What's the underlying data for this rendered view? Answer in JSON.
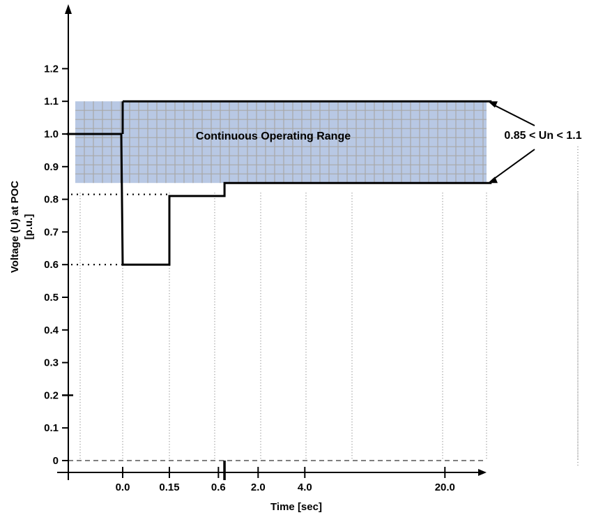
{
  "chart_data": {
    "type": "line",
    "xlabel": "Time [sec]",
    "ylabel": "Voltage (U)  at POC",
    "ylabel_unit": "[p.u.]",
    "y_ticks": [
      "0",
      "0.1",
      "0.2",
      "0.3",
      "0.4",
      "0.5",
      "0.6",
      "0.7",
      "0.8",
      "0.9",
      "1.0",
      "1.1",
      "1.2"
    ],
    "y_tick_values": [
      0,
      0.1,
      0.2,
      0.3,
      0.4,
      0.5,
      0.6,
      0.7,
      0.8,
      0.9,
      1.0,
      1.1,
      1.2
    ],
    "ylim": [
      -0.04,
      1.4
    ],
    "x_ticks": [
      {
        "label": "0.0",
        "pos": 0
      },
      {
        "label": "0.15",
        "pos": 1
      },
      {
        "label": "0.6",
        "pos": 2.05
      },
      {
        "label": "2.0",
        "pos": 2.9
      },
      {
        "label": "4.0",
        "pos": 3.9
      },
      {
        "label": "20.0",
        "pos": 6.9
      }
    ],
    "x_positions_note": "",
    "series": [
      {
        "points": [
          {
            "pos": -1.2,
            "y": 1.0
          },
          {
            "pos": -0.03,
            "y": 1.0
          },
          {
            "pos": 0.0,
            "y": 0.6
          },
          {
            "pos": 1.0,
            "y": 0.6
          },
          {
            "pos": 1.0,
            "y": 0.81
          },
          {
            "pos": 2.18,
            "y": 0.81
          },
          {
            "pos": 2.18,
            "y": 0.85
          },
          {
            "pos": 7.9,
            "y": 0.85
          }
        ]
      },
      {
        "points": [
          {
            "pos": 0.0,
            "y": 1.1
          },
          {
            "pos": 7.9,
            "y": 1.1
          }
        ]
      }
    ],
    "region": {
      "label": "Continuous Operating Range",
      "y_min": 0.85,
      "y_max": 1.1,
      "color": "#b8c8e4",
      "grid_color": "#a7a7a7"
    },
    "annotation": {
      "text": "0.85 < Un < 1.1"
    },
    "dotted_levels": [
      0.6,
      0.815
    ],
    "grid": "dotted-vertical",
    "colors": {
      "axis": "#000000",
      "line": "#000000",
      "region_fill": "#b8c8e4",
      "region_grid": "#a7a7a7",
      "grid_dot": "#666666"
    }
  }
}
